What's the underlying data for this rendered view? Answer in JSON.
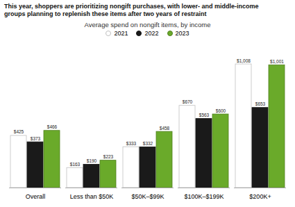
{
  "chart_data": {
    "type": "bar",
    "title": "This year, shoppers are prioritizing nongift purchases, with lower- and middle-income\ngroups planning to replenish these items after two years of restraint",
    "subtitle": "Average spend on nongift items, by income",
    "categories": [
      "Overall",
      "Less than $50K",
      "$50K–$99K",
      "$100K–$199K",
      "$200K+"
    ],
    "series": [
      {
        "name": "2021",
        "color": "#ffffff",
        "values": [
          425,
          163,
          333,
          670,
          1008
        ],
        "value_labels": [
          "$425",
          "$163",
          "$333",
          "$670",
          "$1,008"
        ]
      },
      {
        "name": "2022",
        "color": "#1a1a1a",
        "values": [
          373,
          190,
          332,
          563,
          653
        ],
        "value_labels": [
          "$373",
          "$190",
          "$332",
          "$563",
          "$653"
        ]
      },
      {
        "name": "2023",
        "color": "#6aaa2a",
        "values": [
          466,
          223,
          458,
          600,
          1001
        ],
        "value_labels": [
          "$466",
          "$223",
          "$458",
          "$600",
          "$1,001"
        ]
      }
    ],
    "ylim": [
      0,
      1150
    ],
    "data_labels": true,
    "tick_labels": "x",
    "legend": "top"
  }
}
